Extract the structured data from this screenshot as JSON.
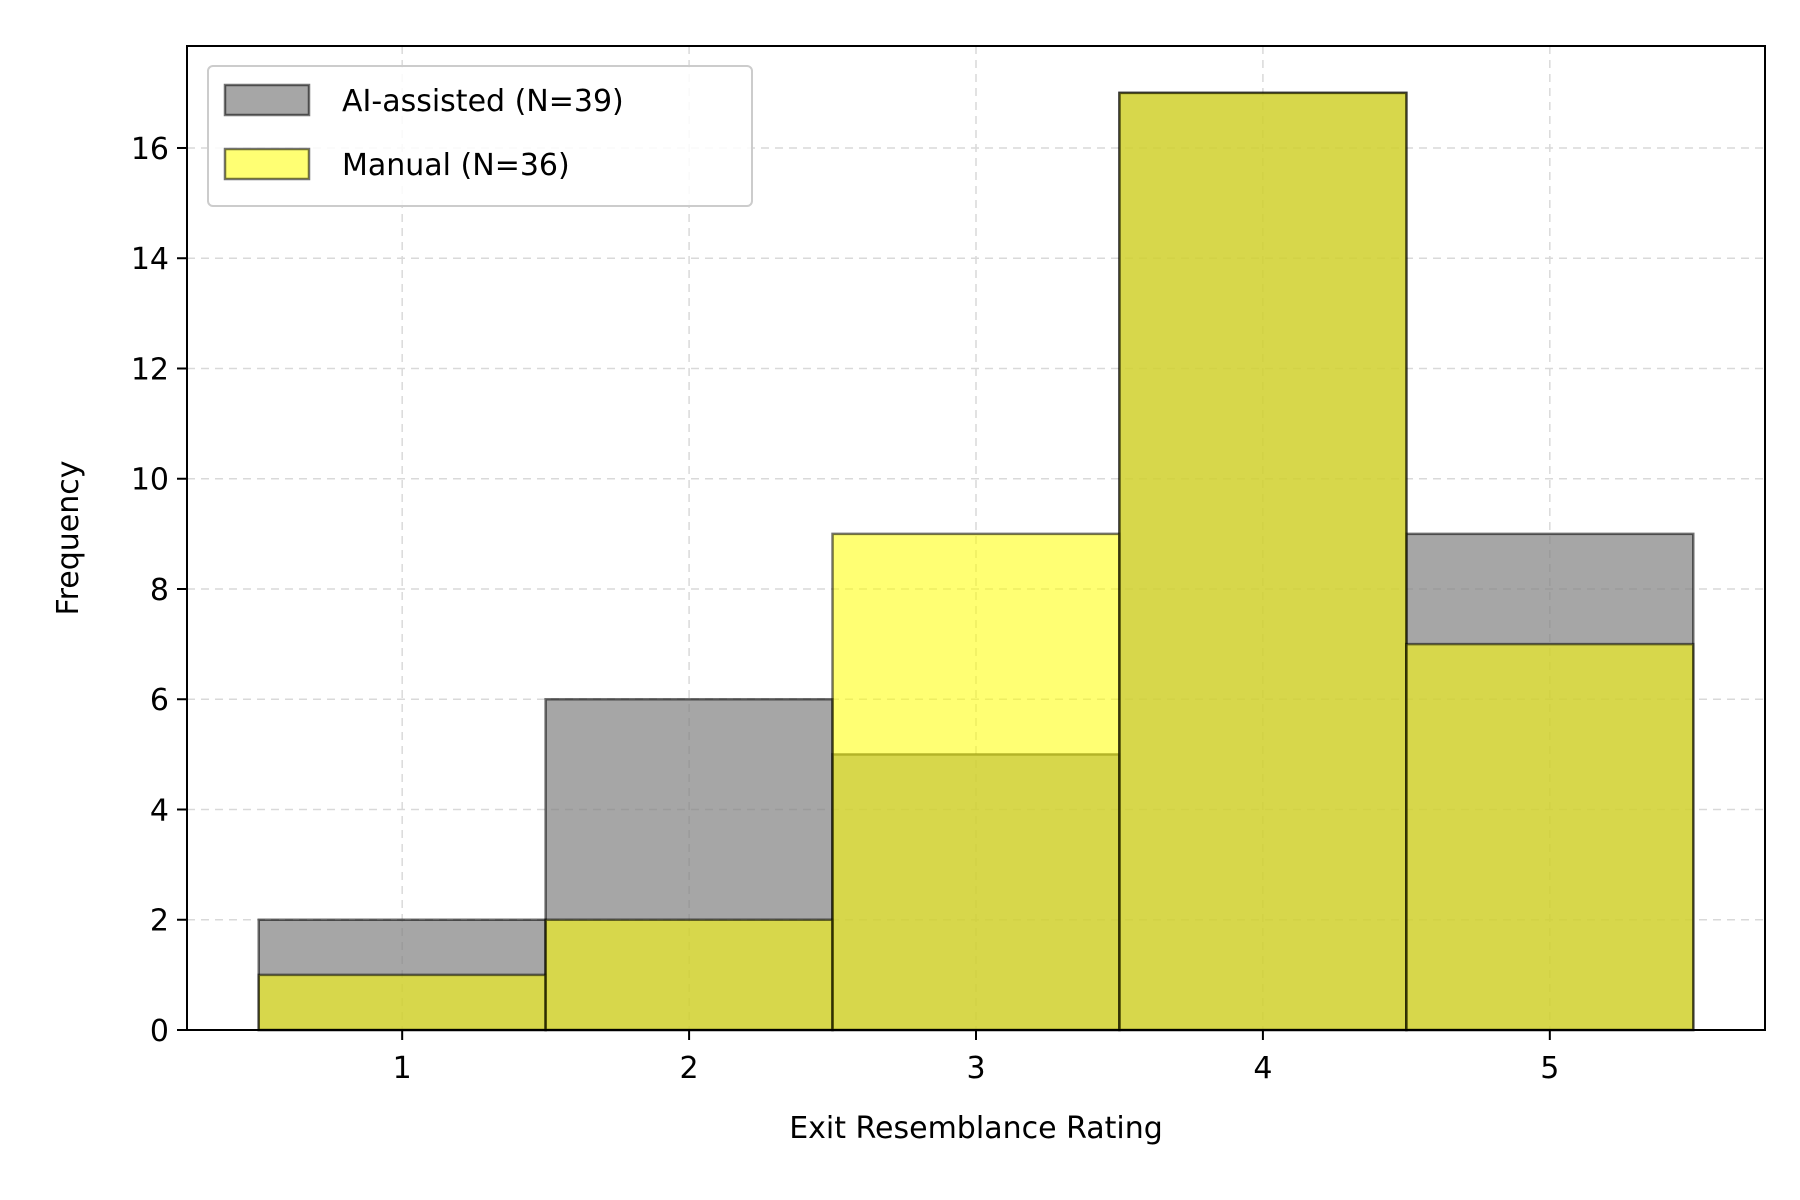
{
  "chart_data": {
    "type": "bar",
    "subtype": "overlapping-histogram",
    "title": "",
    "xlabel": "Exit Resemblance Rating",
    "ylabel": "Frequency",
    "categories": [
      "1",
      "2",
      "3",
      "4",
      "5"
    ],
    "x": [
      1,
      2,
      3,
      4,
      5
    ],
    "xlim": [
      0.25,
      5.75
    ],
    "ylim": [
      0,
      17.85
    ],
    "yticks": [
      0,
      2,
      4,
      6,
      8,
      10,
      12,
      14,
      16
    ],
    "grid": true,
    "legend_position": "top-left",
    "series": [
      {
        "name": "AI-assisted (N=39)",
        "values": [
          2,
          6,
          5,
          17,
          9
        ],
        "color": "#808080",
        "opacity": 0.7
      },
      {
        "name": "Manual (N=36)",
        "values": [
          1,
          2,
          9,
          17,
          7
        ],
        "color": "#ffff00",
        "opacity": 0.55
      }
    ]
  }
}
